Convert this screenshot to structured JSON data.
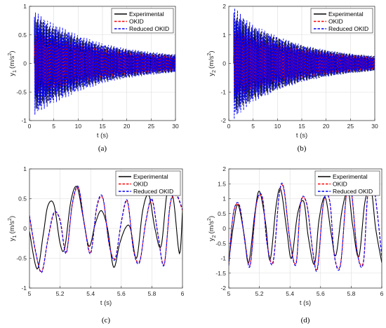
{
  "chart_data": [
    {
      "type": "line",
      "panel_label": "(a)",
      "xlabel": "t (s)",
      "ylabel": "y",
      "ylabel_sub": "1",
      "ylabel_unit": "(m/s",
      "ylabel_sup": "2",
      "ylabel_close": ")",
      "xlim": [
        0,
        30
      ],
      "ylim": [
        -1,
        1
      ],
      "xticks": [
        0,
        5,
        10,
        15,
        20,
        25,
        30
      ],
      "yticks": [
        -1,
        -0.5,
        0,
        0.5,
        1
      ],
      "grid": true,
      "legend": "top-right",
      "series": [
        {
          "name": "Experimental",
          "color": "#000000",
          "style": "solid",
          "amplitude": [
            [
              1.0,
              0.82
            ],
            [
              5,
              0.62
            ],
            [
              10,
              0.44
            ],
            [
              15,
              0.31
            ],
            [
              20,
              0.24
            ],
            [
              25,
              0.18
            ],
            [
              30,
              0.15
            ]
          ]
        },
        {
          "name": "OKID",
          "color": "#ff0000",
          "style": "dashed",
          "amplitude": [
            [
              1.0,
              0.55
            ],
            [
              5,
              0.45
            ],
            [
              10,
              0.35
            ],
            [
              15,
              0.26
            ],
            [
              20,
              0.2
            ],
            [
              25,
              0.16
            ],
            [
              30,
              0.13
            ]
          ]
        },
        {
          "name": "Reduced OKID",
          "color": "#0000ff",
          "style": "dashed",
          "amplitude": [
            [
              1.0,
              0.92
            ],
            [
              5,
              0.7
            ],
            [
              10,
              0.5
            ],
            [
              15,
              0.35
            ],
            [
              20,
              0.26
            ],
            [
              25,
              0.2
            ],
            [
              30,
              0.16
            ]
          ]
        }
      ]
    },
    {
      "type": "line",
      "panel_label": "(b)",
      "xlabel": "t (s)",
      "ylabel": "y",
      "ylabel_sub": "2",
      "ylabel_unit": "(m/s",
      "ylabel_sup": "2",
      "ylabel_close": ")",
      "xlim": [
        0,
        30
      ],
      "ylim": [
        -2,
        2
      ],
      "xticks": [
        0,
        5,
        10,
        15,
        20,
        25,
        30
      ],
      "yticks": [
        -2,
        -1,
        0,
        1,
        2
      ],
      "grid": true,
      "legend": "top-right",
      "series": [
        {
          "name": "Experimental",
          "color": "#000000",
          "style": "solid",
          "amplitude": [
            [
              1.0,
              1.7
            ],
            [
              5,
              1.25
            ],
            [
              10,
              0.9
            ],
            [
              15,
              0.62
            ],
            [
              20,
              0.45
            ],
            [
              25,
              0.33
            ],
            [
              30,
              0.25
            ]
          ]
        },
        {
          "name": "OKID",
          "color": "#ff0000",
          "style": "dashed",
          "amplitude": [
            [
              1.0,
              1.2
            ],
            [
              5,
              0.95
            ],
            [
              10,
              0.7
            ],
            [
              15,
              0.5
            ],
            [
              20,
              0.38
            ],
            [
              25,
              0.28
            ],
            [
              30,
              0.22
            ]
          ]
        },
        {
          "name": "Reduced OKID",
          "color": "#0000ff",
          "style": "dashed",
          "amplitude": [
            [
              1.0,
              2.0
            ],
            [
              5,
              1.35
            ],
            [
              10,
              0.95
            ],
            [
              15,
              0.65
            ],
            [
              20,
              0.47
            ],
            [
              25,
              0.34
            ],
            [
              30,
              0.26
            ]
          ]
        }
      ]
    },
    {
      "type": "line",
      "panel_label": "(c)",
      "xlabel": "t (s)",
      "ylabel": "y",
      "ylabel_sub": "1",
      "ylabel_unit": "(m/s",
      "ylabel_sup": "2",
      "ylabel_close": ")",
      "xlim": [
        5,
        6
      ],
      "ylim": [
        -1,
        1
      ],
      "xticks": [
        5,
        5.2,
        5.4,
        5.6,
        5.8,
        6
      ],
      "yticks": [
        -1,
        -0.5,
        0,
        0.5,
        1
      ],
      "grid": true,
      "legend": "top-right",
      "series": [
        {
          "name": "Experimental",
          "color": "#000000",
          "style": "solid",
          "x": [
            5.0,
            5.05,
            5.09,
            5.12,
            5.16,
            5.2,
            5.23,
            5.27,
            5.31,
            5.35,
            5.39,
            5.43,
            5.47,
            5.51,
            5.55,
            5.59,
            5.63,
            5.66,
            5.7,
            5.74,
            5.78,
            5.82,
            5.86,
            5.9,
            5.94,
            5.98,
            6.0
          ],
          "y": [
            -0.05,
            -0.68,
            -0.1,
            0.38,
            0.4,
            -0.25,
            -0.33,
            0.45,
            0.7,
            0.2,
            -0.3,
            0.08,
            0.3,
            0.0,
            -0.65,
            -0.25,
            0.02,
            0.0,
            -0.5,
            0.3,
            0.56,
            0.0,
            -0.3,
            0.6,
            0.5,
            -0.42,
            0.3
          ]
        },
        {
          "name": "OKID",
          "color": "#ff0000",
          "style": "dashed",
          "x": [
            5.0,
            5.04,
            5.08,
            5.12,
            5.16,
            5.2,
            5.24,
            5.28,
            5.32,
            5.36,
            5.4,
            5.44,
            5.48,
            5.52,
            5.56,
            5.6,
            5.64,
            5.68,
            5.72,
            5.76,
            5.8,
            5.84,
            5.88,
            5.92,
            5.96,
            6.0
          ],
          "y": [
            0.2,
            -0.4,
            -0.72,
            -0.2,
            0.25,
            0.15,
            -0.4,
            0.4,
            0.68,
            0.05,
            -0.4,
            0.35,
            0.5,
            -0.25,
            -0.5,
            0.1,
            0.45,
            -0.35,
            -0.55,
            0.1,
            0.48,
            -0.1,
            -0.6,
            0.4,
            0.55,
            0.3
          ]
        },
        {
          "name": "Reduced OKID",
          "color": "#0000ff",
          "style": "dashed",
          "x": [
            5.0,
            5.04,
            5.08,
            5.12,
            5.16,
            5.2,
            5.24,
            5.28,
            5.32,
            5.36,
            5.4,
            5.44,
            5.48,
            5.52,
            5.56,
            5.6,
            5.64,
            5.68,
            5.72,
            5.76,
            5.8,
            5.84,
            5.88,
            5.92,
            5.96,
            6.0
          ],
          "y": [
            0.22,
            -0.38,
            -0.74,
            -0.18,
            0.27,
            0.13,
            -0.42,
            0.42,
            0.7,
            0.04,
            -0.42,
            0.37,
            0.52,
            -0.26,
            -0.52,
            0.11,
            0.47,
            -0.37,
            -0.57,
            0.11,
            0.5,
            -0.11,
            -0.62,
            0.42,
            0.57,
            0.32
          ]
        }
      ]
    },
    {
      "type": "line",
      "panel_label": "(d)",
      "xlabel": "t (s)",
      "ylabel": "y",
      "ylabel_sub": "2",
      "ylabel_unit": "(m/s",
      "ylabel_sup": "2",
      "ylabel_close": ")",
      "xlim": [
        5,
        6
      ],
      "ylim": [
        -2,
        2
      ],
      "xticks": [
        5,
        5.2,
        5.4,
        5.6,
        5.8,
        6
      ],
      "yticks": [
        -2,
        -1.5,
        -1,
        -0.5,
        0,
        0.5,
        1,
        1.5,
        2
      ],
      "grid": true,
      "legend": "top-right",
      "series": [
        {
          "name": "Experimental",
          "color": "#000000",
          "style": "solid",
          "x": [
            5.0,
            5.03,
            5.06,
            5.1,
            5.13,
            5.17,
            5.2,
            5.24,
            5.27,
            5.31,
            5.34,
            5.38,
            5.41,
            5.45,
            5.49,
            5.52,
            5.56,
            5.59,
            5.63,
            5.67,
            5.7,
            5.74,
            5.78,
            5.81,
            5.85,
            5.89,
            5.93,
            5.96,
            6.0
          ],
          "y": [
            -1.1,
            0.1,
            0.8,
            -0.2,
            -1.15,
            0.5,
            1.25,
            0.2,
            -1.05,
            0.8,
            1.3,
            -0.1,
            -1.0,
            0.5,
            0.9,
            -0.3,
            -1.2,
            0.3,
            1.05,
            -0.2,
            -0.9,
            0.6,
            1.25,
            0.1,
            -0.95,
            0.9,
            1.3,
            0.0,
            -1.15
          ]
        },
        {
          "name": "OKID",
          "color": "#ff0000",
          "style": "dashed",
          "x": [
            5.0,
            5.03,
            5.07,
            5.11,
            5.14,
            5.18,
            5.22,
            5.25,
            5.29,
            5.33,
            5.36,
            5.4,
            5.44,
            5.47,
            5.51,
            5.55,
            5.58,
            5.62,
            5.66,
            5.69,
            5.73,
            5.77,
            5.8,
            5.84,
            5.88,
            5.91,
            5.95,
            6.0
          ],
          "y": [
            -1.2,
            0.5,
            0.75,
            -0.6,
            -1.2,
            0.8,
            1.0,
            -0.5,
            -1.1,
            1.15,
            1.3,
            -0.4,
            -1.15,
            0.85,
            0.8,
            -0.8,
            -1.3,
            0.9,
            0.9,
            -0.9,
            -1.2,
            1.2,
            1.3,
            -0.8,
            -1.1,
            1.2,
            1.3,
            -0.9
          ]
        },
        {
          "name": "Reduced OKID",
          "color": "#0000ff",
          "style": "dashed",
          "x": [
            5.0,
            5.03,
            5.07,
            5.11,
            5.14,
            5.18,
            5.22,
            5.25,
            5.29,
            5.33,
            5.36,
            5.4,
            5.44,
            5.47,
            5.51,
            5.55,
            5.58,
            5.62,
            5.66,
            5.69,
            5.73,
            5.77,
            5.8,
            5.84,
            5.88,
            5.91,
            5.95,
            6.0
          ],
          "y": [
            -1.25,
            0.52,
            0.78,
            -0.62,
            -1.25,
            0.82,
            1.05,
            -0.52,
            -1.15,
            1.18,
            1.35,
            -0.42,
            -1.2,
            0.88,
            0.82,
            -0.82,
            -1.35,
            0.92,
            0.92,
            -0.92,
            -1.25,
            1.25,
            1.35,
            -0.82,
            -1.15,
            1.25,
            1.35,
            -0.95
          ]
        }
      ]
    }
  ]
}
